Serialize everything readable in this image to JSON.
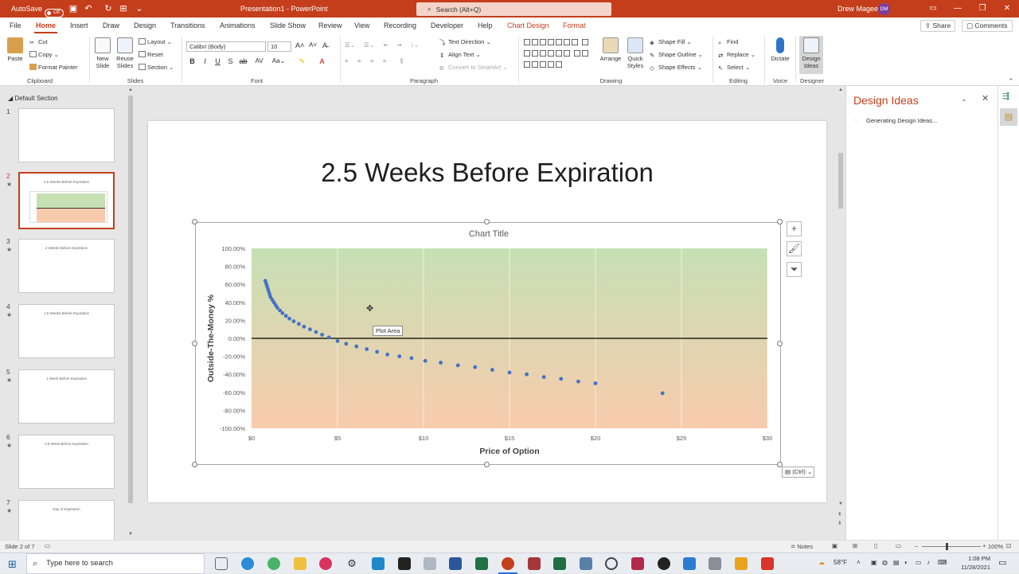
{
  "titlebar": {
    "autosave_label": "AutoSave",
    "autosave_state": "Off",
    "doc_title": "Presentation1 - PowerPoint",
    "search_placeholder": "Search (Alt+Q)",
    "user_name": "Drew Magee",
    "user_initials": "DM",
    "accent": "#c43e1c"
  },
  "tabs": [
    "File",
    "Home",
    "Insert",
    "Draw",
    "Design",
    "Transitions",
    "Animations",
    "Slide Show",
    "Review",
    "View",
    "Recording",
    "Developer",
    "Help",
    "Chart Design",
    "Format"
  ],
  "active_tab": "Home",
  "share_label": "Share",
  "comments_label": "Comments",
  "ribbon": {
    "clipboard": {
      "paste": "Paste",
      "cut": "Cut",
      "copy": "Copy",
      "format_painter": "Format Painter",
      "label": "Clipboard"
    },
    "slides": {
      "new_slide": "New Slide",
      "reuse": "Reuse Slides",
      "layout": "Layout",
      "reset": "Reset",
      "section": "Section",
      "label": "Slides"
    },
    "font": {
      "name": "Calibri (Body)",
      "size": "10",
      "label": "Font"
    },
    "paragraph": {
      "text_direction": "Text Direction",
      "align_text": "Align Text",
      "smartart": "Convert to SmartArt",
      "label": "Paragraph"
    },
    "drawing": {
      "arrange": "Arrange",
      "quick_styles": "Quick Styles",
      "shape_fill": "Shape Fill",
      "shape_outline": "Shape Outline",
      "shape_effects": "Shape Effects",
      "label": "Drawing"
    },
    "editing": {
      "find": "Find",
      "replace": "Replace",
      "select": "Select",
      "label": "Editing"
    },
    "voice": {
      "dictate": "Dictate",
      "label": "Voice"
    },
    "designer": {
      "design_ideas": "Design Ideas",
      "label": "Designer"
    }
  },
  "thumbpane": {
    "section": "Default Section",
    "slides": [
      {
        "num": "1",
        "title": ""
      },
      {
        "num": "2",
        "title": "2.5 Weeks Before Expiration"
      },
      {
        "num": "3",
        "title": "2 Weeks Before Expiration"
      },
      {
        "num": "4",
        "title": "1.5 Weeks Before Expiration"
      },
      {
        "num": "5",
        "title": "1 Week Before Expiration"
      },
      {
        "num": "6",
        "title": "0.5 Week Before Expiration"
      },
      {
        "num": "7",
        "title": "Day of Expiration"
      }
    ]
  },
  "slide": {
    "title": "2.5 Weeks Before Expiration"
  },
  "chart_data": {
    "type": "scatter",
    "title": "Chart Title",
    "xlabel": "Price of Option",
    "ylabel": "Outside-The-Money %",
    "xlim": [
      0,
      30
    ],
    "ylim": [
      -100,
      100
    ],
    "x_ticks": [
      0,
      5,
      10,
      15,
      20,
      25,
      30
    ],
    "x_tick_labels": [
      "$0",
      "$5",
      "$10",
      "$15",
      "$20",
      "$25",
      "$30"
    ],
    "y_ticks": [
      100,
      80,
      60,
      40,
      20,
      0,
      -20,
      -40,
      -60,
      -80,
      -100
    ],
    "y_tick_labels": [
      "100.00%",
      "80.00%",
      "60.00%",
      "40.00%",
      "20.00%",
      "0.00%",
      "-20.00%",
      "-40.00%",
      "-60.00%",
      "-80.00%",
      "-100.00%"
    ],
    "series": [
      {
        "name": "",
        "color": "#4472c4",
        "x": [
          0.8,
          0.85,
          0.9,
          0.95,
          1.0,
          1.05,
          1.1,
          1.2,
          1.3,
          1.4,
          1.5,
          1.65,
          1.8,
          2.0,
          2.2,
          2.45,
          2.75,
          3.05,
          3.4,
          3.75,
          4.1,
          4.5,
          5.0,
          5.5,
          6.1,
          6.7,
          7.3,
          7.9,
          8.6,
          9.3,
          10.1,
          11.0,
          12.0,
          13.0,
          14.0,
          15.0,
          16.0,
          17.0,
          18.0,
          19.0,
          20.0,
          23.9
        ],
        "y": [
          64,
          61,
          58,
          55,
          52,
          49,
          46,
          43,
          40,
          37,
          34,
          31,
          28,
          25,
          22,
          19,
          16,
          13,
          10,
          7,
          4,
          1,
          -3,
          -6,
          -9,
          -12,
          -15,
          -18,
          -20,
          -22,
          -25,
          -27,
          -30,
          -32,
          -35,
          -38,
          -40,
          -43,
          -45,
          -48,
          -50,
          -61
        ]
      }
    ],
    "plot_colors": {
      "top": "#c6e0b4",
      "bottom": "#f8cbad"
    },
    "tooltip": "Plot Area",
    "grid": "vertical"
  },
  "chart_ctrl_tag": "(Ctrl)",
  "design_pane": {
    "title": "Design Ideas",
    "status": "Generating Design Ideas..."
  },
  "statusbar": {
    "slide_info": "Slide 2 of 7",
    "notes": "Notes",
    "zoom": "100%"
  },
  "taskbar": {
    "search_placeholder": "Type here to search",
    "weather": "58°F",
    "time": "1:08 PM",
    "date": "11/28/2021"
  }
}
